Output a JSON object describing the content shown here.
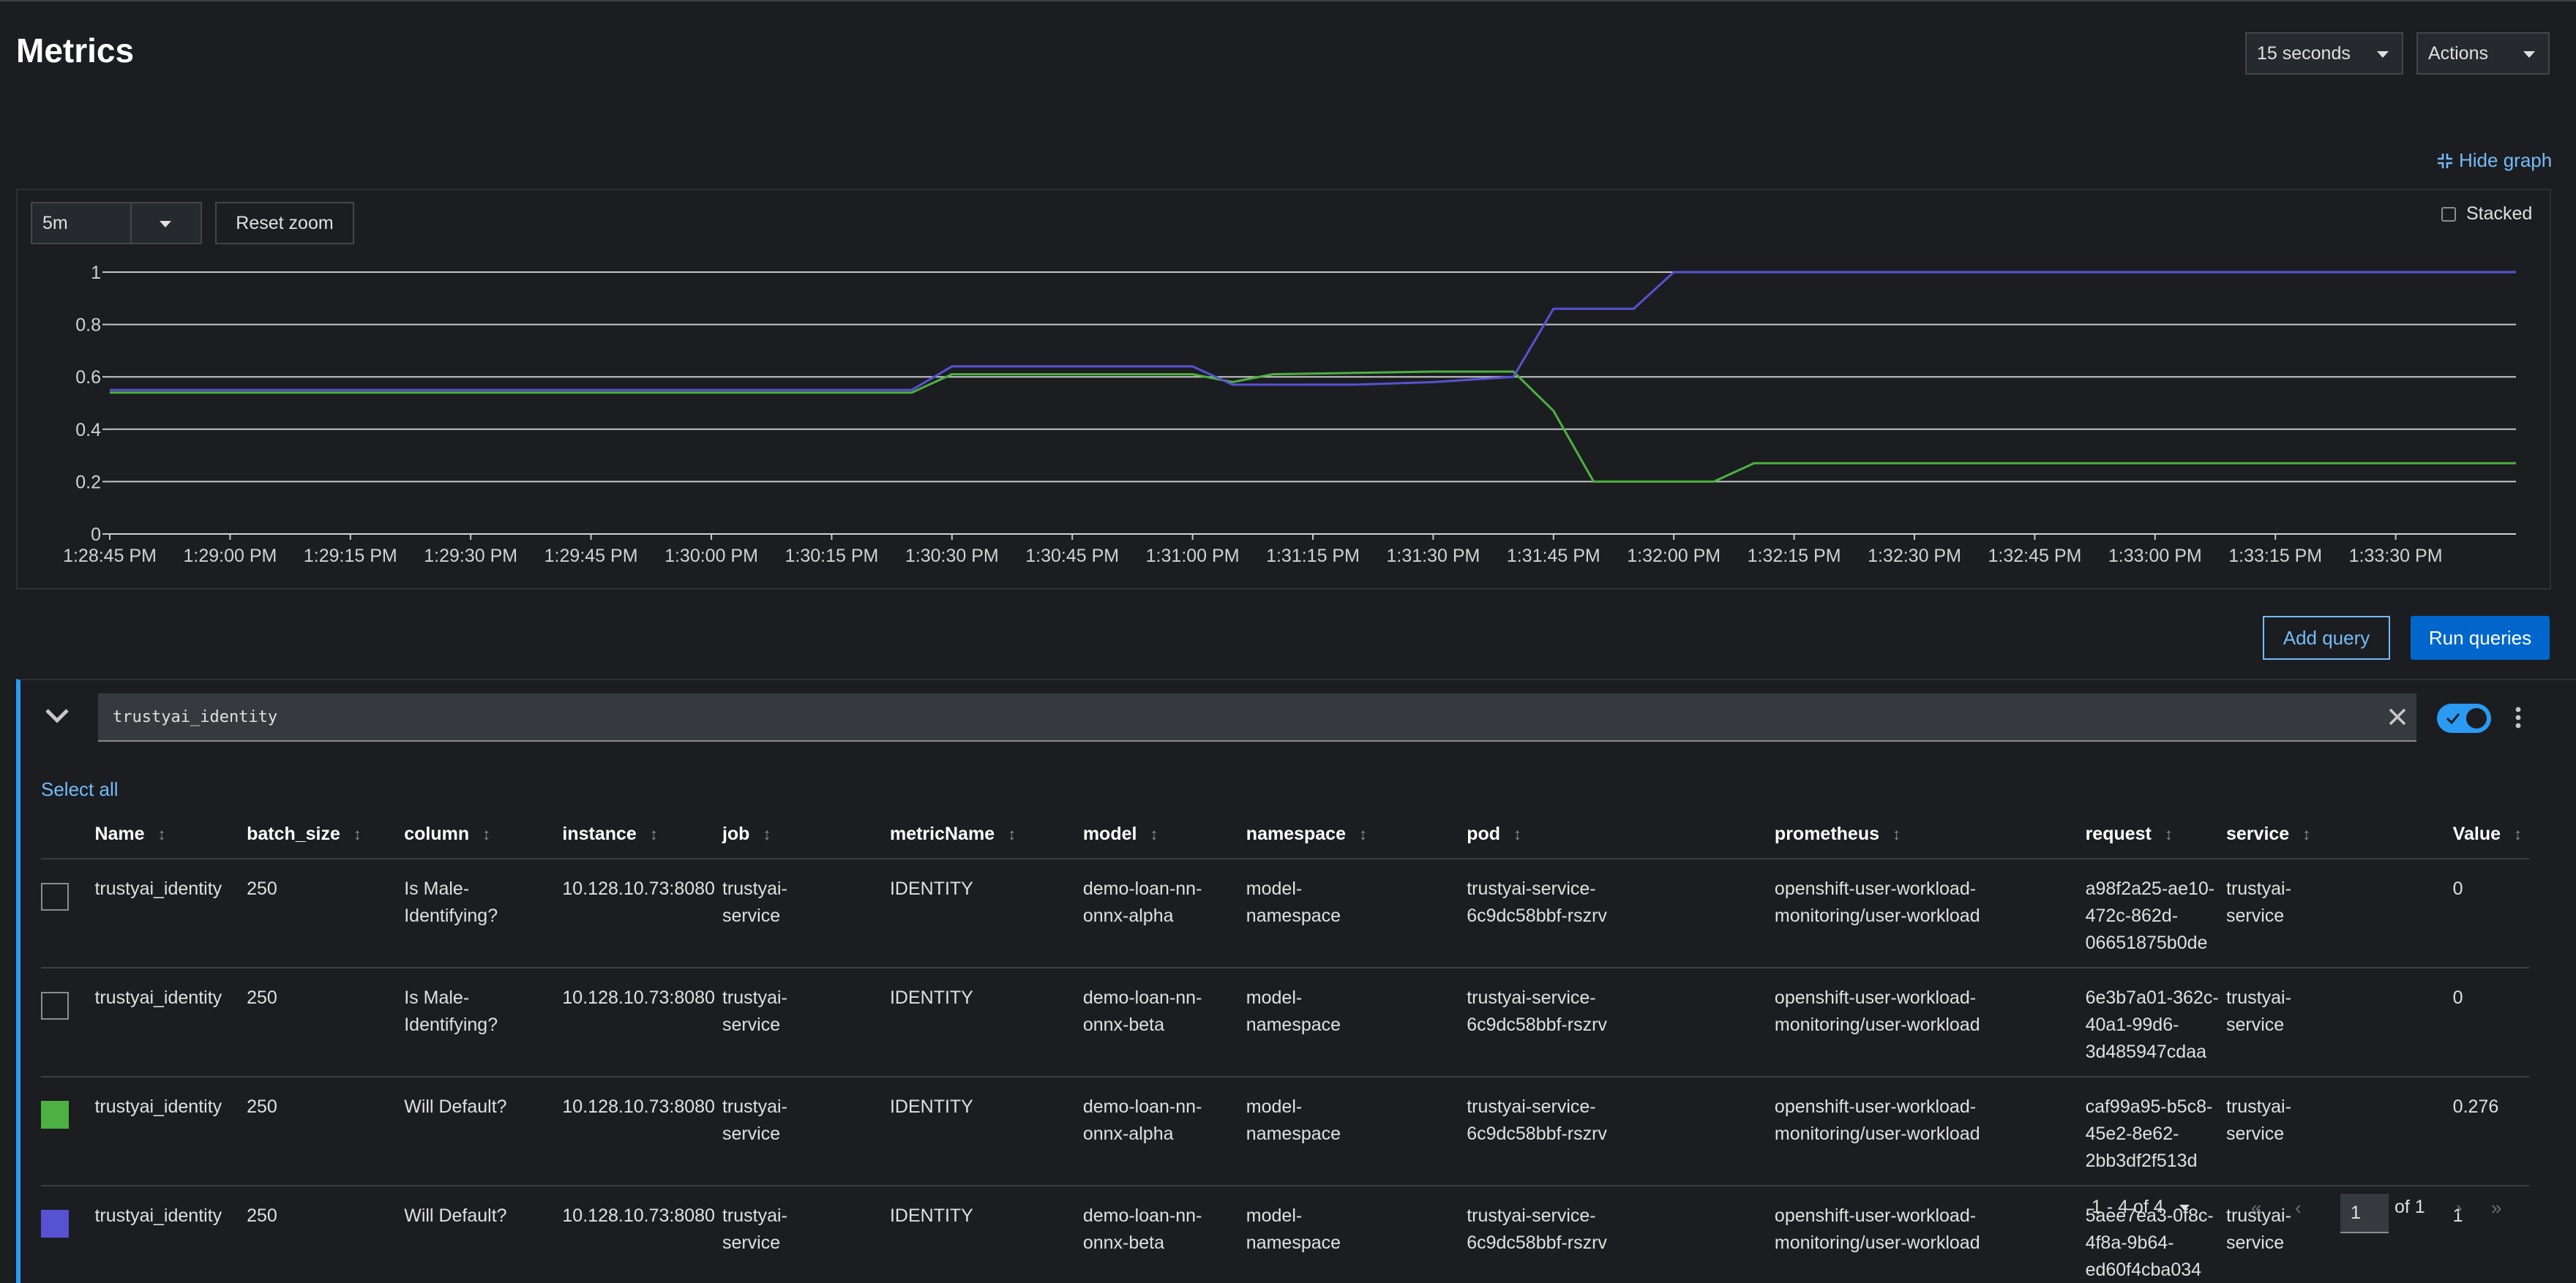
{
  "page": {
    "title": "Metrics"
  },
  "header": {
    "refresh_interval": "15 seconds",
    "actions_label": "Actions"
  },
  "graph_controls": {
    "hide_graph_label": "Hide graph",
    "time_range": "5m",
    "reset_zoom_label": "Reset zoom",
    "stacked_label": "Stacked",
    "stacked_checked": false
  },
  "chart_data": {
    "type": "line",
    "title": "",
    "xlabel": "",
    "ylabel": "",
    "ylim": [
      0,
      1
    ],
    "y_ticks": [
      "0",
      "0.2",
      "0.4",
      "0.6",
      "0.8",
      "1"
    ],
    "grid": true,
    "x_ticks": [
      "1:28:45 PM",
      "1:29:00 PM",
      "1:29:15 PM",
      "1:29:30 PM",
      "1:29:45 PM",
      "1:30:00 PM",
      "1:30:15 PM",
      "1:30:30 PM",
      "1:30:45 PM",
      "1:31:00 PM",
      "1:31:15 PM",
      "1:31:30 PM",
      "1:31:45 PM",
      "1:32:00 PM",
      "1:32:15 PM",
      "1:32:30 PM",
      "1:32:45 PM",
      "1:33:00 PM",
      "1:33:15 PM",
      "1:33:30 PM"
    ],
    "x_range": [
      "1:28:45 PM",
      "1:33:45 PM"
    ],
    "series": [
      {
        "color": "#4cb140",
        "points": [
          [
            "1:28:45 PM",
            0.54
          ],
          [
            "1:30:25 PM",
            0.54
          ],
          [
            "1:30:30 PM",
            0.61
          ],
          [
            "1:31:00 PM",
            0.61
          ],
          [
            "1:31:05 PM",
            0.58
          ],
          [
            "1:31:10 PM",
            0.61
          ],
          [
            "1:31:30 PM",
            0.62
          ],
          [
            "1:31:40 PM",
            0.62
          ],
          [
            "1:31:45 PM",
            0.47
          ],
          [
            "1:31:50 PM",
            0.2
          ],
          [
            "1:32:05 PM",
            0.2
          ],
          [
            "1:32:10 PM",
            0.27
          ],
          [
            "1:33:45 PM",
            0.27
          ]
        ]
      },
      {
        "color": "#5752d1",
        "points": [
          [
            "1:28:45 PM",
            0.55
          ],
          [
            "1:30:25 PM",
            0.55
          ],
          [
            "1:30:30 PM",
            0.64
          ],
          [
            "1:31:00 PM",
            0.64
          ],
          [
            "1:31:05 PM",
            0.57
          ],
          [
            "1:31:20 PM",
            0.57
          ],
          [
            "1:31:30 PM",
            0.58
          ],
          [
            "1:31:40 PM",
            0.6
          ],
          [
            "1:31:45 PM",
            0.86
          ],
          [
            "1:31:55 PM",
            0.86
          ],
          [
            "1:32:00 PM",
            1.0
          ],
          [
            "1:33:45 PM",
            1.0
          ]
        ]
      }
    ]
  },
  "query_actions": {
    "add_query_label": "Add query",
    "run_queries_label": "Run queries"
  },
  "query": {
    "expression": "trustyai_identity",
    "enabled": true
  },
  "results": {
    "select_all_label": "Select all",
    "columns": [
      "Name",
      "batch_size",
      "column",
      "instance",
      "job",
      "metricName",
      "model",
      "namespace",
      "pod",
      "prometheus",
      "request",
      "service",
      "Value"
    ],
    "rows": [
      {
        "swatch": "",
        "cells": [
          [
            "trustyai_identity"
          ],
          [
            "250"
          ],
          [
            "Is Male-",
            "Identifying?"
          ],
          [
            "10.128.10.73:8080"
          ],
          [
            "trustyai-",
            "service"
          ],
          [
            "IDENTITY"
          ],
          [
            "demo-loan-nn-",
            "onnx-alpha"
          ],
          [
            "model-",
            "namespace"
          ],
          [
            "trustyai-service-",
            "6c9dc58bbf-rszrv"
          ],
          [
            "openshift-user-workload-",
            "monitoring/user-workload"
          ],
          [
            "a98f2a25-ae10-472c-862d-",
            "06651875b0de"
          ],
          [
            "trustyai-",
            "service"
          ],
          [
            "0"
          ]
        ]
      },
      {
        "swatch": "",
        "cells": [
          [
            "trustyai_identity"
          ],
          [
            "250"
          ],
          [
            "Is Male-",
            "Identifying?"
          ],
          [
            "10.128.10.73:8080"
          ],
          [
            "trustyai-",
            "service"
          ],
          [
            "IDENTITY"
          ],
          [
            "demo-loan-nn-",
            "onnx-beta"
          ],
          [
            "model-",
            "namespace"
          ],
          [
            "trustyai-service-",
            "6c9dc58bbf-rszrv"
          ],
          [
            "openshift-user-workload-",
            "monitoring/user-workload"
          ],
          [
            "6e3b7a01-362c-40a1-99d6-",
            "3d485947cdaa"
          ],
          [
            "trustyai-",
            "service"
          ],
          [
            "0"
          ]
        ]
      },
      {
        "swatch": "#4cb140",
        "cells": [
          [
            "trustyai_identity"
          ],
          [
            "250"
          ],
          [
            "Will Default?"
          ],
          [
            "10.128.10.73:8080"
          ],
          [
            "trustyai-",
            "service"
          ],
          [
            "IDENTITY"
          ],
          [
            "demo-loan-nn-",
            "onnx-alpha"
          ],
          [
            "model-",
            "namespace"
          ],
          [
            "trustyai-service-",
            "6c9dc58bbf-rszrv"
          ],
          [
            "openshift-user-workload-",
            "monitoring/user-workload"
          ],
          [
            "caf99a95-b5c8-45e2-8e62-",
            "2bb3df2f513d"
          ],
          [
            "trustyai-",
            "service"
          ],
          [
            "0.276"
          ]
        ]
      },
      {
        "swatch": "#5752d1",
        "cells": [
          [
            "trustyai_identity"
          ],
          [
            "250"
          ],
          [
            "Will Default?"
          ],
          [
            "10.128.10.73:8080"
          ],
          [
            "trustyai-",
            "service"
          ],
          [
            "IDENTITY"
          ],
          [
            "demo-loan-nn-",
            "onnx-beta"
          ],
          [
            "model-",
            "namespace"
          ],
          [
            "trustyai-service-",
            "6c9dc58bbf-rszrv"
          ],
          [
            "openshift-user-workload-",
            "monitoring/user-workload"
          ],
          [
            "5aee7ea3-0f8c-4f8a-9b64-",
            "ed60f4cba034"
          ],
          [
            "trustyai-",
            "service"
          ],
          [
            "1"
          ]
        ]
      }
    ]
  },
  "pagination": {
    "range_label": "1 - 4 of 4",
    "current_page": "1",
    "of_label": "of 1"
  }
}
